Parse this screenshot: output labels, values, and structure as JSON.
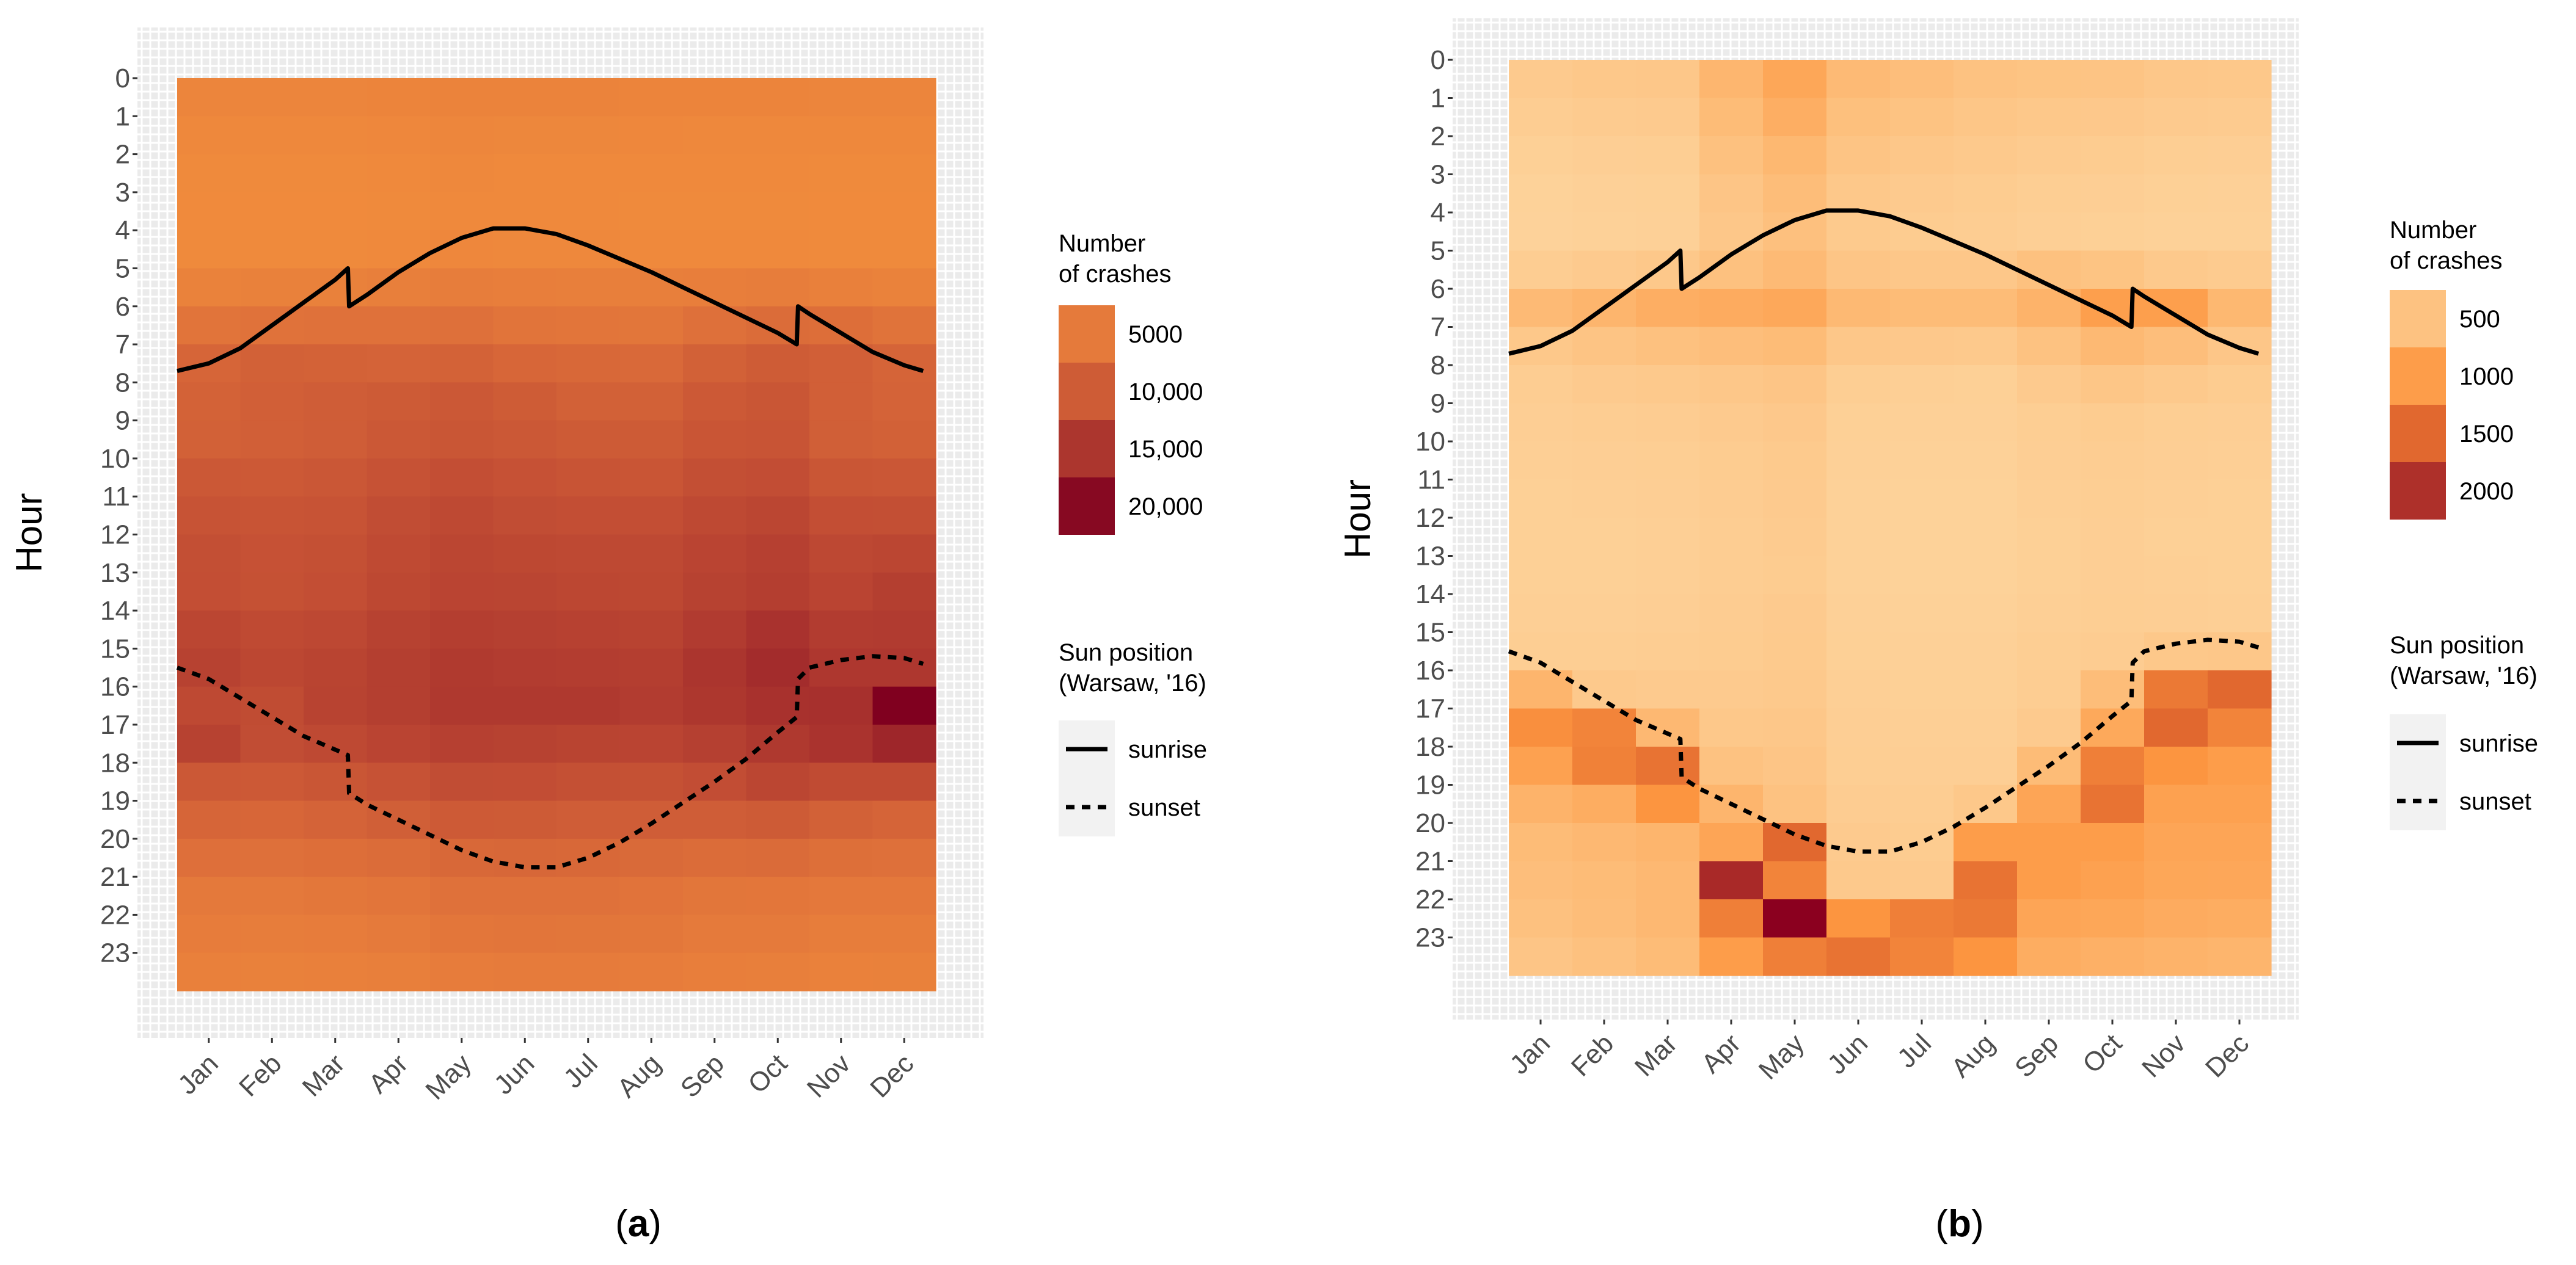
{
  "chart_data": [
    {
      "type": "heatmap",
      "panel_label": "a",
      "ylabel": "Hour",
      "x_categories": [
        "Jan",
        "Feb",
        "Mar",
        "Apr",
        "May",
        "Jun",
        "Jul",
        "Aug",
        "Sep",
        "Oct",
        "Nov",
        "Dec"
      ],
      "y_categories": [
        "0",
        "1",
        "2",
        "3",
        "4",
        "5",
        "6",
        "7",
        "8",
        "9",
        "10",
        "11",
        "12",
        "13",
        "14",
        "15",
        "16",
        "17",
        "18",
        "19",
        "20",
        "21",
        "22",
        "23"
      ],
      "legend_title": [
        "Number",
        "of crashes"
      ],
      "legend_breaks": [
        {
          "value": 5000,
          "label": "5000"
        },
        {
          "value": 10000,
          "label": "10,000"
        },
        {
          "value": 15000,
          "label": "15,000"
        },
        {
          "value": 20000,
          "label": "20,000"
        }
      ],
      "color_scale": {
        "min": 1800,
        "max": 21000,
        "colors": [
          "#f08b3c",
          "#e0723a",
          "#c75335",
          "#a32c2c",
          "#80001f"
        ]
      },
      "values": [
        [
          3000,
          2900,
          2900,
          3100,
          3400,
          3300,
          3300,
          3100,
          3100,
          3100,
          3000,
          3000
        ],
        [
          2400,
          2300,
          2300,
          2500,
          2700,
          2600,
          2600,
          2500,
          2400,
          2400,
          2400,
          2400
        ],
        [
          2000,
          2000,
          2000,
          2100,
          2300,
          2200,
          2200,
          2100,
          2100,
          2100,
          2000,
          2000
        ],
        [
          1900,
          1900,
          1900,
          2000,
          2200,
          2100,
          2100,
          2000,
          2000,
          2000,
          1900,
          1900
        ],
        [
          2000,
          2000,
          2000,
          2200,
          2500,
          2400,
          2300,
          2200,
          2200,
          2100,
          2000,
          2000
        ],
        [
          3600,
          3800,
          3800,
          4200,
          4500,
          4300,
          4200,
          4100,
          4300,
          4500,
          4000,
          3600
        ],
        [
          6300,
          6600,
          6800,
          6800,
          6900,
          6300,
          6100,
          5900,
          6900,
          7600,
          7200,
          6500
        ],
        [
          8600,
          9200,
          9100,
          8900,
          9100,
          8400,
          8100,
          8000,
          9300,
          10000,
          9500,
          8700
        ],
        [
          9100,
          9500,
          9900,
          10200,
          10600,
          10000,
          9300,
          9200,
          10500,
          11000,
          9500,
          9000
        ],
        [
          9300,
          9500,
          9800,
          10600,
          11000,
          10600,
          10200,
          10200,
          11100,
          11300,
          9600,
          9200
        ],
        [
          10600,
          10500,
          10800,
          11500,
          12000,
          11600,
          11200,
          11100,
          11900,
          12100,
          11000,
          10800
        ],
        [
          11400,
          11200,
          11400,
          12200,
          12600,
          12200,
          12000,
          12000,
          12600,
          13000,
          12000,
          11900
        ],
        [
          11900,
          11600,
          11800,
          12500,
          13000,
          12800,
          12600,
          12600,
          13200,
          13700,
          12700,
          13000
        ],
        [
          12000,
          11700,
          12000,
          12800,
          13200,
          13100,
          12900,
          12800,
          13500,
          14000,
          13200,
          13900
        ],
        [
          13000,
          12500,
          12700,
          13500,
          14000,
          13800,
          13600,
          13400,
          14300,
          15400,
          14200,
          14300
        ],
        [
          13500,
          12900,
          13300,
          13900,
          14500,
          14200,
          14100,
          14000,
          15100,
          16200,
          14800,
          14800
        ],
        [
          12600,
          12300,
          13400,
          13900,
          14600,
          14600,
          14600,
          14200,
          14900,
          15600,
          15700,
          21000
        ],
        [
          13500,
          12200,
          12600,
          13200,
          13700,
          13500,
          13300,
          13200,
          13800,
          14600,
          15300,
          16900
        ],
        [
          10700,
          10400,
          11000,
          11500,
          12200,
          12100,
          11800,
          11700,
          12100,
          13000,
          12400,
          12400
        ],
        [
          8600,
          8400,
          8900,
          9600,
          10300,
          10200,
          9900,
          9800,
          9800,
          10200,
          9200,
          8800
        ],
        [
          7000,
          6900,
          7200,
          7600,
          8200,
          8300,
          8200,
          7900,
          7600,
          7700,
          7100,
          6900
        ],
        [
          5300,
          5300,
          5600,
          6000,
          6700,
          6700,
          6700,
          6400,
          5900,
          5800,
          5400,
          5400
        ],
        [
          4600,
          4400,
          4600,
          5100,
          5800,
          6000,
          5900,
          5600,
          5100,
          5000,
          4500,
          4500
        ],
        [
          3900,
          3800,
          3900,
          4200,
          4600,
          4900,
          4900,
          4600,
          4300,
          4100,
          3700,
          3800
        ]
      ]
    },
    {
      "type": "heatmap",
      "panel_label": "b",
      "ylabel": "Hour",
      "x_categories": [
        "Jan",
        "Feb",
        "Mar",
        "Apr",
        "May",
        "Jun",
        "Jul",
        "Aug",
        "Sep",
        "Oct",
        "Nov",
        "Dec"
      ],
      "y_categories": [
        "0",
        "1",
        "2",
        "3",
        "4",
        "5",
        "6",
        "7",
        "8",
        "9",
        "10",
        "11",
        "12",
        "13",
        "14",
        "15",
        "16",
        "17",
        "18",
        "19",
        "20",
        "21",
        "22",
        "23"
      ],
      "legend_title": [
        "Number",
        "of crashes"
      ],
      "legend_breaks": [
        {
          "value": 500,
          "label": "500"
        },
        {
          "value": 1000,
          "label": "1000"
        },
        {
          "value": 1500,
          "label": "1500"
        },
        {
          "value": 2000,
          "label": "2000"
        }
      ],
      "color_scale": {
        "min": 250,
        "max": 2350,
        "colors": [
          "#fdd39b",
          "#fdb770",
          "#fd9640",
          "#e0672f",
          "#b53a2c",
          "#8b001f"
        ]
      },
      "values": [
        [
          380,
          420,
          430,
          680,
          880,
          620,
          560,
          500,
          480,
          470,
          430,
          420
        ],
        [
          340,
          370,
          380,
          600,
          780,
          540,
          490,
          450,
          420,
          410,
          380,
          370
        ],
        [
          300,
          320,
          330,
          520,
          660,
          470,
          430,
          400,
          370,
          360,
          330,
          320
        ],
        [
          270,
          290,
          300,
          460,
          580,
          420,
          380,
          360,
          330,
          320,
          300,
          290
        ],
        [
          260,
          280,
          290,
          430,
          530,
          390,
          360,
          340,
          310,
          300,
          280,
          280
        ],
        [
          340,
          380,
          420,
          520,
          620,
          460,
          430,
          430,
          520,
          480,
          400,
          370
        ],
        [
          620,
          700,
          780,
          820,
          860,
          640,
          600,
          600,
          720,
          980,
          980,
          660
        ],
        [
          420,
          470,
          520,
          560,
          600,
          430,
          410,
          400,
          500,
          640,
          560,
          440
        ],
        [
          340,
          380,
          400,
          430,
          460,
          330,
          310,
          300,
          380,
          450,
          400,
          360
        ],
        [
          320,
          340,
          350,
          380,
          410,
          300,
          290,
          290,
          330,
          360,
          330,
          320
        ],
        [
          310,
          320,
          330,
          360,
          390,
          290,
          280,
          280,
          320,
          340,
          320,
          310
        ],
        [
          300,
          310,
          320,
          350,
          380,
          280,
          270,
          270,
          310,
          330,
          310,
          300
        ],
        [
          300,
          300,
          310,
          340,
          370,
          280,
          270,
          270,
          300,
          320,
          300,
          300
        ],
        [
          300,
          300,
          310,
          340,
          360,
          280,
          270,
          270,
          300,
          320,
          310,
          300
        ],
        [
          310,
          310,
          320,
          350,
          380,
          290,
          280,
          280,
          310,
          330,
          320,
          310
        ],
        [
          330,
          330,
          340,
          360,
          390,
          300,
          290,
          290,
          330,
          350,
          420,
          430
        ],
        [
          700,
          400,
          380,
          380,
          400,
          310,
          300,
          300,
          340,
          580,
          1350,
          1500
        ],
        [
          1150,
          1250,
          650,
          420,
          430,
          320,
          310,
          310,
          380,
          850,
          1500,
          1250
        ],
        [
          950,
          1280,
          1400,
          500,
          460,
          330,
          320,
          320,
          600,
          1300,
          1100,
          1000
        ],
        [
          720,
          800,
          1100,
          700,
          500,
          350,
          340,
          420,
          900,
          1400,
          950,
          950
        ],
        [
          600,
          650,
          700,
          900,
          1500,
          380,
          360,
          1000,
          1000,
          1000,
          900,
          900
        ],
        [
          560,
          600,
          650,
          2050,
          1250,
          400,
          380,
          1400,
          1000,
          950,
          880,
          870
        ],
        [
          520,
          580,
          650,
          1300,
          2350,
          1100,
          1300,
          1350,
          900,
          880,
          820,
          800
        ],
        [
          460,
          520,
          600,
          1000,
          1300,
          1400,
          1250,
          1100,
          800,
          760,
          720,
          700
        ]
      ]
    }
  ],
  "sun_position": {
    "legend_title": [
      "Sun position",
      "(Warsaw, '16)"
    ],
    "series": [
      {
        "name": "sunrise",
        "style": "solid",
        "months": [
          0,
          0.5,
          1,
          1.5,
          2,
          2.5,
          2.7,
          2.72,
          3,
          3.5,
          4,
          4.5,
          5,
          5.5,
          6,
          6.5,
          7,
          7.5,
          8,
          8.5,
          9,
          9.5,
          9.8,
          9.82,
          10,
          10.5,
          11,
          11.5,
          11.8
        ],
        "hours": [
          7.7,
          7.5,
          7.1,
          6.5,
          5.9,
          5.3,
          5.0,
          6.0,
          5.7,
          5.1,
          4.6,
          4.2,
          3.95,
          3.95,
          4.1,
          4.4,
          4.75,
          5.1,
          5.5,
          5.9,
          6.3,
          6.7,
          7.0,
          6.0,
          6.2,
          6.7,
          7.2,
          7.55,
          7.7
        ]
      },
      {
        "name": "sunset",
        "style": "dashed",
        "months": [
          0,
          0.5,
          1,
          1.5,
          2,
          2.7,
          2.72,
          3,
          3.5,
          4,
          4.5,
          5,
          5.5,
          6,
          6.5,
          7,
          7.5,
          8,
          8.5,
          9,
          9.5,
          9.8,
          9.82,
          10,
          10.5,
          11,
          11.5,
          11.8
        ],
        "hours": [
          15.5,
          15.8,
          16.3,
          16.8,
          17.3,
          17.8,
          18.8,
          19.1,
          19.5,
          19.9,
          20.3,
          20.6,
          20.75,
          20.75,
          20.5,
          20.1,
          19.6,
          19.05,
          18.5,
          17.9,
          17.2,
          16.8,
          15.8,
          15.5,
          15.3,
          15.2,
          15.25,
          15.4
        ]
      }
    ]
  }
}
